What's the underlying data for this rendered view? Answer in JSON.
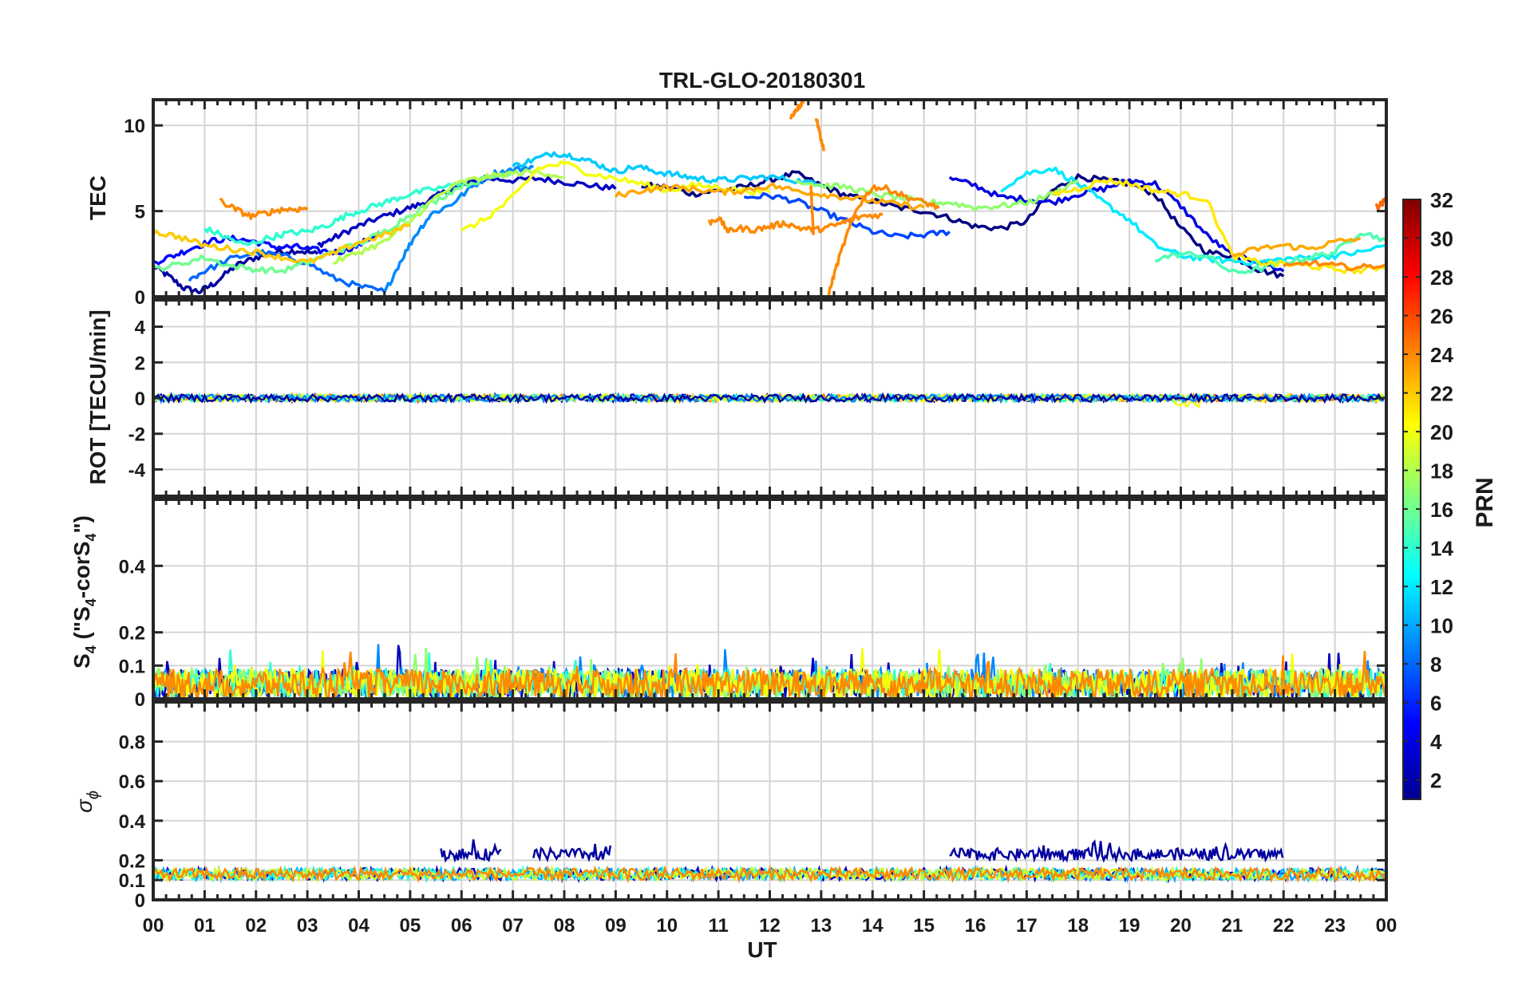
{
  "chart_data": {
    "type": "line",
    "title": "TRL-GLO-20180301",
    "x_axis": {
      "label": "UT",
      "range": [
        0,
        24
      ],
      "tick_labels": [
        "00",
        "01",
        "02",
        "03",
        "04",
        "05",
        "06",
        "07",
        "08",
        "09",
        "10",
        "11",
        "12",
        "13",
        "14",
        "15",
        "16",
        "17",
        "18",
        "19",
        "20",
        "21",
        "22",
        "23",
        "00"
      ]
    },
    "panels": [
      {
        "id": "tec",
        "ylabel": "TEC",
        "ylim": [
          0,
          11.5
        ],
        "yticks": [
          0,
          5,
          10
        ],
        "ytick_labels": [
          "0",
          "5",
          "10"
        ]
      },
      {
        "id": "rot",
        "ylabel": "ROT [TECU/min]",
        "ylim": [
          -5.5,
          5.5
        ],
        "yticks": [
          -4,
          -2,
          0,
          2,
          4
        ],
        "ytick_labels": [
          "-4",
          "-2",
          "0",
          "2",
          "4"
        ]
      },
      {
        "id": "s4",
        "ylabel_main": "S",
        "ylabel_sub1": "4",
        "ylabel_mid": " (\"S",
        "ylabel_sub2": "4",
        "ylabel_mid2": "-corS",
        "ylabel_sub3": "4",
        "ylabel_end": "\")",
        "ylim": [
          0,
          0.6
        ],
        "yticks": [
          0,
          0.1,
          0.2,
          0.4
        ],
        "ytick_labels": [
          "0",
          "0.1",
          "0.2",
          "0.4"
        ]
      },
      {
        "id": "sigma",
        "ylabel_main": "σ",
        "ylabel_sub": "ϕ",
        "ylim": [
          0,
          1
        ],
        "yticks": [
          0,
          0.1,
          0.2,
          0.4,
          0.6,
          0.8
        ],
        "ytick_labels": [
          "0",
          "0.1",
          "0.2",
          "0.4",
          "0.6",
          "0.8"
        ]
      }
    ],
    "colorbar": {
      "label": "PRN",
      "range": [
        1,
        32
      ],
      "tick_values": [
        2,
        4,
        6,
        8,
        10,
        12,
        14,
        16,
        18,
        20,
        22,
        24,
        26,
        28,
        30,
        32
      ],
      "tick_labels": [
        "2",
        "4",
        "6",
        "8",
        "10",
        "12",
        "14",
        "16",
        "18",
        "20",
        "22",
        "24",
        "26",
        "28",
        "30",
        "32"
      ]
    },
    "grid": true,
    "tec_series": [
      {
        "prn": 2,
        "x": [
          0,
          0.3,
          0.6,
          0.9,
          1.2,
          1.6,
          2.0,
          2.4,
          2.8,
          3.2
        ],
        "y": [
          1.8,
          1.2,
          0.5,
          0.3,
          0.8,
          1.8,
          2.3,
          2.6,
          2.7,
          2.5
        ]
      },
      {
        "prn": 3,
        "x": [
          3.2,
          3.5,
          3.9,
          4.3,
          4.8,
          5.2,
          5.6,
          6.0,
          6.5,
          7.0,
          7.5,
          8.0,
          8.5,
          9.0
        ],
        "y": [
          3.0,
          3.4,
          4.0,
          4.5,
          5.0,
          5.4,
          6.0,
          6.5,
          6.9,
          6.8,
          6.9,
          6.7,
          6.5,
          6.3
        ]
      },
      {
        "prn": 1,
        "x": [
          9.5,
          10.0,
          10.5,
          11.0,
          11.5,
          12.0,
          12.5,
          13.0,
          13.5,
          14.0,
          14.5,
          15.0,
          15.5,
          16.0,
          16.5,
          17.0,
          17.5,
          18.0,
          18.5,
          19.0,
          19.5,
          20.0,
          20.5,
          21.0,
          21.5,
          22.0
        ],
        "y": [
          6.5,
          6.4,
          6.0,
          6.2,
          6.4,
          6.8,
          7.2,
          6.5,
          5.9,
          5.6,
          5.2,
          5.0,
          4.6,
          4.1,
          4.0,
          4.4,
          6.2,
          7.0,
          6.8,
          6.6,
          6.0,
          4.0,
          2.6,
          2.4,
          1.6,
          1.2
        ]
      },
      {
        "prn": 5,
        "x": [
          0,
          0.4,
          0.8,
          1.2,
          1.6,
          2.0,
          2.4,
          2.8,
          3.2,
          3.6,
          4.0,
          4.4
        ],
        "y": [
          2.0,
          2.4,
          2.9,
          3.3,
          3.4,
          3.2,
          2.9,
          2.9,
          2.7,
          2.6,
          3.0,
          3.8
        ]
      },
      {
        "prn": 4,
        "x": [
          15.5,
          16.0,
          16.5,
          17.0,
          17.5,
          18.0,
          18.5,
          19.0,
          19.5,
          20.0,
          20.5,
          21.0,
          21.5,
          22.0
        ],
        "y": [
          6.9,
          6.5,
          5.8,
          5.7,
          5.5,
          6.0,
          6.3,
          6.8,
          6.6,
          5.3,
          3.6,
          2.4,
          2.1,
          1.5
        ]
      },
      {
        "prn": 7,
        "x": [
          11.5,
          12.0,
          12.5,
          13.0,
          13.5,
          14.0,
          14.5,
          15.0,
          15.5
        ],
        "y": [
          5.8,
          5.9,
          5.6,
          5.0,
          4.4,
          3.8,
          3.5,
          3.6,
          3.8
        ]
      },
      {
        "prn": 8,
        "x": [
          0.7,
          1.0,
          1.5,
          2.0,
          2.5,
          3.0,
          3.5,
          4.0,
          4.5
        ],
        "y": [
          1.0,
          1.5,
          2.2,
          2.6,
          2.4,
          2.0,
          1.1,
          0.6,
          0.3
        ]
      },
      {
        "prn": 9,
        "x": [
          4.5,
          4.8,
          5.1,
          5.4,
          5.8,
          6.2,
          6.6,
          7.0,
          7.4
        ],
        "y": [
          0.2,
          2.0,
          3.6,
          4.8,
          5.4,
          6.4,
          7.2,
          7.4,
          7.6
        ]
      },
      {
        "prn": 11,
        "x": [
          7.0,
          7.4,
          7.8,
          8.2,
          8.6,
          9.0,
          9.4,
          9.8,
          10.2,
          10.6,
          11.0,
          11.5,
          12.0,
          12.5,
          13.0
        ],
        "y": [
          7.6,
          8.0,
          8.4,
          8.2,
          7.8,
          7.3,
          7.6,
          7.3,
          7.1,
          6.9,
          6.8,
          6.9,
          7.0,
          6.8,
          6.5
        ]
      },
      {
        "prn": 12,
        "x": [
          16.5,
          17.0,
          17.5,
          18.0,
          18.5,
          19.0,
          19.5,
          20.0,
          20.5,
          21.0,
          21.5,
          22.0,
          22.5,
          23.0,
          23.5,
          24.0
        ],
        "y": [
          6.3,
          7.2,
          7.5,
          6.6,
          5.5,
          4.5,
          3.0,
          2.4,
          2.2,
          2.1,
          2.0,
          2.2,
          2.3,
          2.4,
          2.6,
          3.0
        ]
      },
      {
        "prn": 14,
        "x": [
          1.0,
          1.4,
          1.8,
          2.2,
          2.6,
          3.0,
          3.4,
          3.8,
          4.2,
          4.6,
          5.0,
          5.5,
          6.0
        ],
        "y": [
          4.0,
          3.5,
          3.0,
          3.4,
          3.7,
          3.8,
          4.2,
          4.8,
          5.2,
          5.6,
          6.0,
          6.3,
          6.6
        ]
      },
      {
        "prn": 15,
        "x": [
          19.5,
          20.0,
          20.5,
          21.0,
          21.5,
          22.0,
          22.5,
          23.0,
          23.5,
          24.0
        ],
        "y": [
          2.2,
          2.5,
          2.4,
          1.4,
          1.6,
          2.0,
          2.3,
          2.6,
          3.8,
          3.3
        ]
      },
      {
        "prn": 16,
        "x": [
          0,
          0.5,
          1.0,
          1.5,
          2.0,
          2.5,
          3.0,
          3.5,
          4.0,
          4.5,
          5.0,
          5.5,
          6.0,
          6.5,
          7.0
        ],
        "y": [
          1.6,
          1.9,
          2.3,
          1.8,
          1.6,
          1.5,
          2.0,
          2.6,
          3.1,
          3.8,
          4.8,
          5.6,
          6.5,
          6.9,
          7.3
        ]
      },
      {
        "prn": 17,
        "x": [
          12.5,
          13.0,
          13.5,
          14.0,
          14.5,
          15.0,
          15.5,
          16.0,
          16.5,
          17.0,
          17.5,
          18.0
        ],
        "y": [
          6.8,
          6.5,
          6.4,
          6.0,
          5.8,
          5.5,
          5.5,
          5.2,
          5.3,
          5.5,
          6.0,
          6.8
        ]
      },
      {
        "prn": 18,
        "x": [
          3.5,
          4.0,
          4.5,
          5.0,
          5.5,
          6.0,
          6.5,
          7.0,
          7.5,
          8.0
        ],
        "y": [
          2.0,
          2.6,
          3.2,
          4.4,
          5.8,
          6.7,
          7.0,
          7.2,
          7.3,
          7.0
        ]
      },
      {
        "prn": 20,
        "x": [
          6.0,
          6.5,
          7.0,
          7.5,
          8.0,
          8.5,
          9.0,
          9.5,
          10.0,
          10.5,
          11.0,
          11.5,
          12.0
        ],
        "y": [
          3.8,
          4.6,
          5.8,
          7.5,
          7.8,
          7.2,
          6.9,
          6.6,
          6.2,
          6.5,
          6.4,
          6.2,
          6.1
        ]
      },
      {
        "prn": 21,
        "x": [
          17.5,
          18.0,
          18.5,
          19.0,
          19.5,
          20.0,
          20.5,
          21.0,
          21.5,
          22.0,
          22.5,
          23.0,
          23.5,
          24.0
        ],
        "y": [
          6.0,
          6.3,
          6.8,
          6.6,
          6.2,
          6.0,
          5.7,
          2.4,
          2.0,
          1.9,
          1.8,
          1.6,
          1.5,
          1.8
        ]
      },
      {
        "prn": 22,
        "x": [
          0,
          0.5,
          1.0,
          1.5,
          2.0,
          2.5,
          3.0,
          3.5,
          4.0,
          4.5,
          5.0
        ],
        "y": [
          3.8,
          3.5,
          3.0,
          2.8,
          2.6,
          2.3,
          2.0,
          2.5,
          3.2,
          3.6,
          4.2
        ]
      },
      {
        "prn": 23,
        "x": [
          9.0,
          9.5,
          10.0,
          10.5,
          11.0,
          11.5,
          12.0,
          12.5,
          13.0,
          13.5,
          14.0,
          14.5,
          15.0
        ],
        "y": [
          5.9,
          6.2,
          6.4,
          6.3,
          6.1,
          6.2,
          6.5,
          6.2,
          6.0,
          5.8,
          5.6,
          5.4,
          5.2
        ]
      },
      {
        "prn": 23,
        "x": [
          21.0,
          21.5,
          22.0,
          22.5,
          23.0,
          23.5
        ],
        "y": [
          2.4,
          2.8,
          3.0,
          2.8,
          3.2,
          3.4
        ]
      },
      {
        "prn": 24,
        "x": [
          1.3,
          1.6,
          1.9,
          2.2,
          2.5,
          2.8,
          3.0
        ],
        "y": [
          5.6,
          5.1,
          4.7,
          4.9,
          5.1,
          5.1,
          5.2
        ]
      },
      {
        "prn": 24,
        "x": [
          10.8,
          11.0,
          11.2,
          11.4,
          11.7,
          12.0,
          12.3,
          12.6,
          12.9,
          13.2,
          13.5,
          13.8,
          14.2
        ],
        "y": [
          4.3,
          4.6,
          3.8,
          4.0,
          3.9,
          4.1,
          4.3,
          4.0,
          3.9,
          4.1,
          4.4,
          4.7,
          4.8
        ]
      },
      {
        "prn": 24,
        "x": [
          12.4,
          12.5,
          12.6,
          12.65
        ],
        "y": [
          10.4,
          10.9,
          11.2,
          11.5
        ]
      },
      {
        "prn": 24,
        "x": [
          12.9,
          13.0,
          13.05
        ],
        "y": [
          10.5,
          9.2,
          8.5
        ]
      },
      {
        "prn": 24,
        "x": [
          12.8,
          12.85
        ],
        "y": [
          6.5,
          3.6
        ]
      },
      {
        "prn": 24,
        "x": [
          13.15,
          13.3,
          13.5,
          13.7,
          14.0,
          14.3,
          14.6,
          15.0,
          15.3
        ],
        "y": [
          0.2,
          1.8,
          3.6,
          5.2,
          6.4,
          6.3,
          5.9,
          5.5,
          5.2
        ]
      },
      {
        "prn": 24,
        "x": [
          22.0,
          22.5,
          23.0,
          23.5,
          24.0
        ],
        "y": [
          1.7,
          2.0,
          1.8,
          1.7,
          1.9
        ]
      },
      {
        "prn": 25,
        "x": [
          23.8,
          23.9,
          24.0
        ],
        "y": [
          5.2,
          5.4,
          5.7
        ]
      }
    ]
  }
}
